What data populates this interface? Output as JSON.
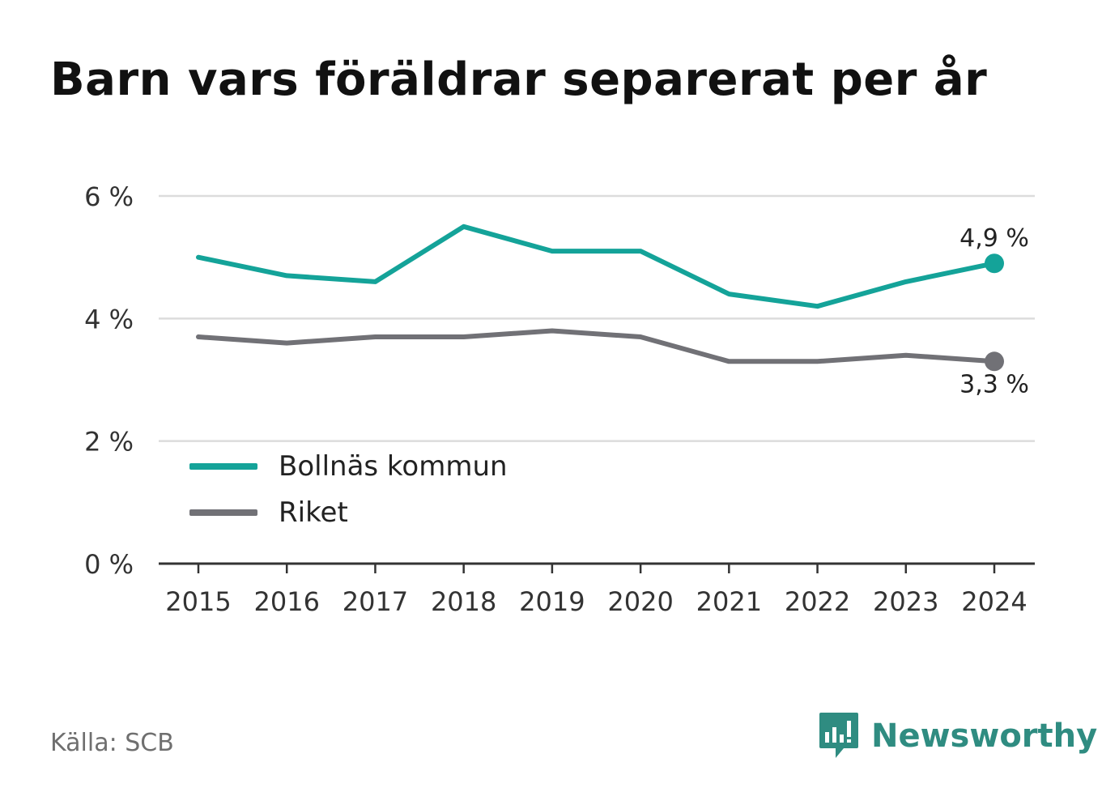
{
  "title": "Barn vars föräldrar separerat per år",
  "source": "Källa: SCB",
  "brand": "Newsworthy",
  "colors": {
    "series1": "#14a399",
    "series2": "#717176",
    "brand": "#2f8c81"
  },
  "chart_data": {
    "type": "line",
    "title": "Barn vars föräldrar separerat per år",
    "x": [
      2015,
      2016,
      2017,
      2018,
      2019,
      2020,
      2021,
      2022,
      2023,
      2024
    ],
    "x_tick_labels": [
      "2015",
      "2016",
      "2017",
      "2018",
      "2019",
      "2020",
      "2021",
      "2022",
      "2023",
      "2024"
    ],
    "y_ticks": [
      0,
      2,
      4,
      6
    ],
    "y_tick_labels": [
      "0 %",
      "2 %",
      "4 %",
      "6 %"
    ],
    "ylim": [
      0,
      6
    ],
    "grid": true,
    "legend_position": "bottom-left",
    "series": [
      {
        "name": "Bollnäs kommun",
        "color": "#14a399",
        "values": [
          5.0,
          4.7,
          4.6,
          5.5,
          5.1,
          5.1,
          4.4,
          4.2,
          4.6,
          4.9
        ],
        "end_label": "4,9 %"
      },
      {
        "name": "Riket",
        "color": "#717176",
        "values": [
          3.7,
          3.6,
          3.7,
          3.7,
          3.8,
          3.7,
          3.3,
          3.3,
          3.4,
          3.3
        ],
        "end_label": "3,3 %"
      }
    ]
  }
}
